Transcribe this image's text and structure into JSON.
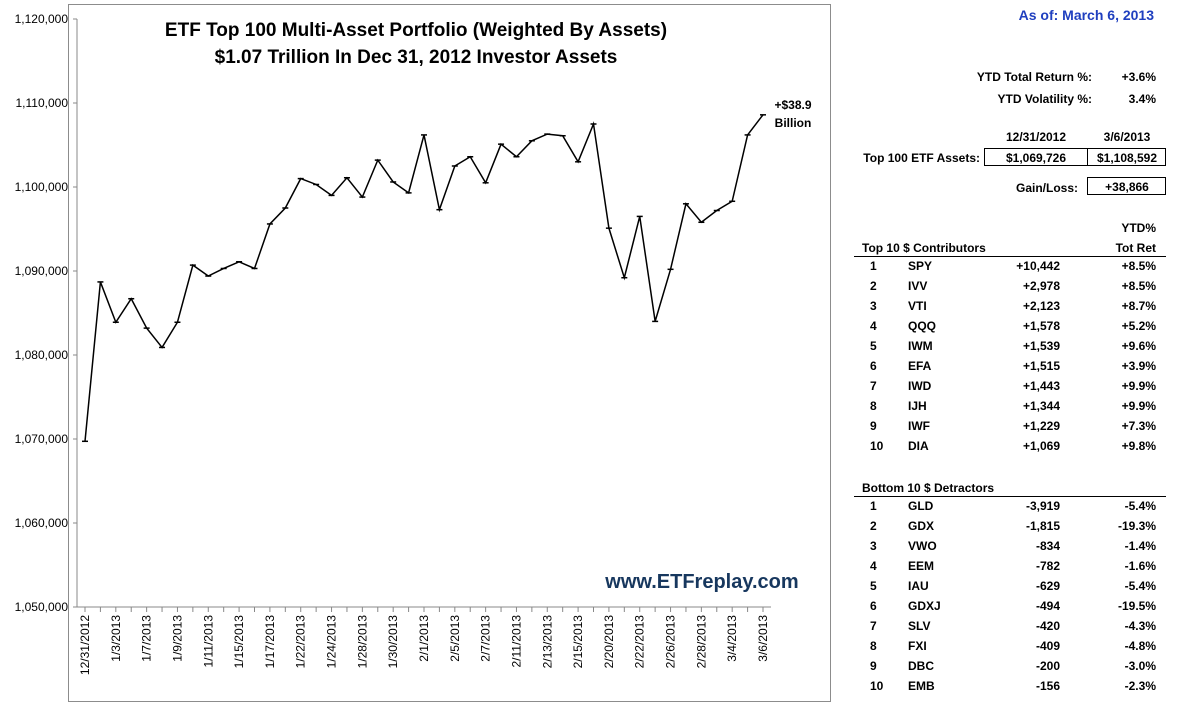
{
  "chart_data": {
    "type": "line",
    "title": "ETF Top 100 Multi-Asset Portfolio  (Weighted By Assets)",
    "subtitle": "$1.07 Trillion In Dec 31, 2012 Investor Assets",
    "xlabel": "",
    "ylabel": "",
    "ylim": [
      1050000,
      1120000
    ],
    "yticks": [
      "1,050,000",
      "1,060,000",
      "1,070,000",
      "1,080,000",
      "1,090,000",
      "1,100,000",
      "1,110,000",
      "1,120,000"
    ],
    "ytick_values": [
      1050000,
      1060000,
      1070000,
      1080000,
      1090000,
      1100000,
      1110000,
      1120000
    ],
    "xtick_labels": [
      "12/31/2012",
      "1/3/2013",
      "1/7/2013",
      "1/9/2013",
      "1/11/2013",
      "1/15/2013",
      "1/17/2013",
      "1/22/2013",
      "1/24/2013",
      "1/28/2013",
      "1/30/2013",
      "2/1/2013",
      "2/5/2013",
      "2/7/2013",
      "2/11/2013",
      "2/13/2013",
      "2/15/2013",
      "2/20/2013",
      "2/22/2013",
      "2/26/2013",
      "2/28/2013",
      "3/4/2013",
      "3/6/2013"
    ],
    "x": [
      "12/31/2012",
      "1/2/2013",
      "1/3/2013",
      "1/4/2013",
      "1/7/2013",
      "1/8/2013",
      "1/9/2013",
      "1/10/2013",
      "1/11/2013",
      "1/14/2013",
      "1/15/2013",
      "1/16/2013",
      "1/17/2013",
      "1/18/2013",
      "1/22/2013",
      "1/23/2013",
      "1/24/2013",
      "1/25/2013",
      "1/28/2013",
      "1/29/2013",
      "1/30/2013",
      "1/31/2013",
      "2/1/2013",
      "2/4/2013",
      "2/5/2013",
      "2/6/2013",
      "2/7/2013",
      "2/8/2013",
      "2/11/2013",
      "2/12/2013",
      "2/13/2013",
      "2/14/2013",
      "2/15/2013",
      "2/19/2013",
      "2/20/2013",
      "2/21/2013",
      "2/22/2013",
      "2/25/2013",
      "2/26/2013",
      "2/27/2013",
      "2/28/2013",
      "3/1/2013",
      "3/4/2013",
      "3/5/2013",
      "3/6/2013"
    ],
    "series": [
      {
        "values": [
          1069726,
          1088700,
          1083900,
          1086700,
          1083200,
          1080900,
          1083900,
          1090700,
          1089400,
          1090300,
          1091100,
          1090300,
          1095600,
          1097500,
          1101000,
          1100300,
          1099000,
          1101100,
          1098800,
          1103200,
          1100600,
          1099300,
          1106200,
          1097300,
          1102500,
          1103600,
          1100500,
          1105100,
          1103600,
          1105500,
          1106300,
          1106100,
          1103000,
          1107500,
          1095100,
          1089200,
          1096500,
          1084000,
          1090200,
          1098000,
          1095800,
          1097200,
          1098300,
          1106200,
          1108592
        ]
      }
    ],
    "annotation": [
      "+$38.9",
      "Billion"
    ],
    "grid": false,
    "watermark": "www.ETFreplay.com",
    "line_color": "#000000"
  },
  "panel": {
    "as_of": "As of:  March 6, 2013",
    "ytd_total_return_label": "YTD Total Return %:",
    "ytd_total_return": "+3.6%",
    "ytd_volatility_label": "YTD Volatility %:",
    "ytd_volatility": "3.4%",
    "date_start": "12/31/2012",
    "date_end": "3/6/2013",
    "assets_label": "Top 100 ETF Assets:",
    "assets_start": "$1,069,726",
    "assets_end": "$1,108,592",
    "gain_label": "Gain/Loss:",
    "gain_value": "+38,866",
    "ytd_header_line1": "YTD%",
    "ytd_header_line2": "Tot Ret",
    "top_title": "Top 10 $ Contributors",
    "bottom_title": "Bottom 10 $ Detractors",
    "top": [
      {
        "rank": "1",
        "ticker": "SPY",
        "value": "+10,442",
        "ret": "+8.5%"
      },
      {
        "rank": "2",
        "ticker": "IVV",
        "value": "+2,978",
        "ret": "+8.5%"
      },
      {
        "rank": "3",
        "ticker": "VTI",
        "value": "+2,123",
        "ret": "+8.7%"
      },
      {
        "rank": "4",
        "ticker": "QQQ",
        "value": "+1,578",
        "ret": "+5.2%"
      },
      {
        "rank": "5",
        "ticker": "IWM",
        "value": "+1,539",
        "ret": "+9.6%"
      },
      {
        "rank": "6",
        "ticker": "EFA",
        "value": "+1,515",
        "ret": "+3.9%"
      },
      {
        "rank": "7",
        "ticker": "IWD",
        "value": "+1,443",
        "ret": "+9.9%"
      },
      {
        "rank": "8",
        "ticker": "IJH",
        "value": "+1,344",
        "ret": "+9.9%"
      },
      {
        "rank": "9",
        "ticker": "IWF",
        "value": "+1,229",
        "ret": "+7.3%"
      },
      {
        "rank": "10",
        "ticker": "DIA",
        "value": "+1,069",
        "ret": "+9.8%"
      }
    ],
    "bottom": [
      {
        "rank": "1",
        "ticker": "GLD",
        "value": "-3,919",
        "ret": "-5.4%"
      },
      {
        "rank": "2",
        "ticker": "GDX",
        "value": "-1,815",
        "ret": "-19.3%"
      },
      {
        "rank": "3",
        "ticker": "VWO",
        "value": "-834",
        "ret": "-1.4%"
      },
      {
        "rank": "4",
        "ticker": "EEM",
        "value": "-782",
        "ret": "-1.6%"
      },
      {
        "rank": "5",
        "ticker": "IAU",
        "value": "-629",
        "ret": "-5.4%"
      },
      {
        "rank": "6",
        "ticker": "GDXJ",
        "value": "-494",
        "ret": "-19.5%"
      },
      {
        "rank": "7",
        "ticker": "SLV",
        "value": "-420",
        "ret": "-4.3%"
      },
      {
        "rank": "8",
        "ticker": "FXI",
        "value": "-409",
        "ret": "-4.8%"
      },
      {
        "rank": "9",
        "ticker": "DBC",
        "value": "-200",
        "ret": "-3.0%"
      },
      {
        "rank": "10",
        "ticker": "EMB",
        "value": "-156",
        "ret": "-2.3%"
      }
    ],
    "as_of_color": "#1f3fbf"
  }
}
